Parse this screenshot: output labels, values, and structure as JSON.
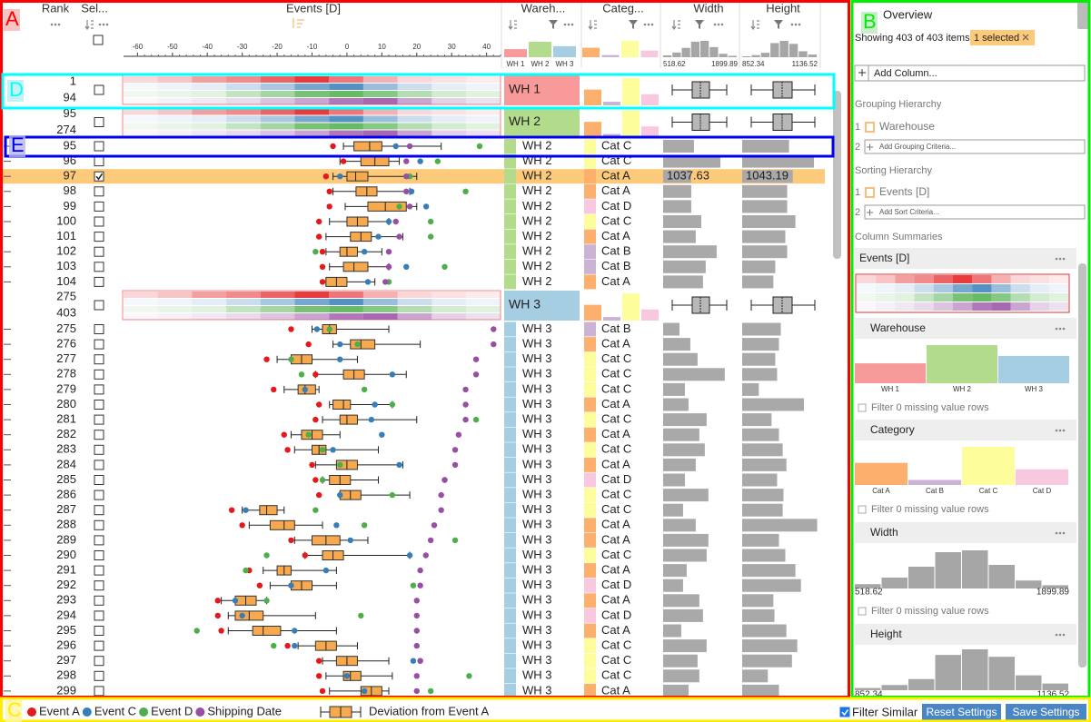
{
  "annotations": [
    "A",
    "B",
    "C",
    "D",
    "E"
  ],
  "header": {
    "rank": "Rank",
    "selection": "Sel...",
    "events": "Events [D]",
    "warehouse": "Wareh...",
    "category": "Categ...",
    "width": "Width",
    "height": "Height"
  },
  "events_axis": {
    "xlim": [
      -64,
      44
    ],
    "xticks": [
      -60,
      -50,
      -40,
      -30,
      -20,
      -10,
      0,
      10,
      20,
      30,
      40
    ]
  },
  "warehouses": [
    {
      "name": "WH 1",
      "count": 94,
      "color": "#f89a9a"
    },
    {
      "name": "WH 2",
      "count": 180,
      "color": "#b2dc8c"
    },
    {
      "name": "WH 3",
      "count": 129,
      "color": "#a6cee3"
    }
  ],
  "categories": [
    {
      "name": "Cat A",
      "count": 110,
      "color": "#fdb06d"
    },
    {
      "name": "Cat B",
      "count": 25,
      "color": "#cbb3d6"
    },
    {
      "name": "Cat C",
      "count": 190,
      "color": "#fdfd9c"
    },
    {
      "name": "Cat D",
      "count": 78,
      "color": "#f8c8e0"
    }
  ],
  "width_range": [
    518.62,
    1899.89
  ],
  "width_hist": [
    12,
    30,
    60,
    100,
    105,
    65,
    22,
    9
  ],
  "height_range": [
    852.34,
    1136.52
  ],
  "height_hist": [
    6,
    14,
    30,
    95,
    110,
    90,
    40,
    18
  ],
  "items": [
    {
      "warehouse": "WH 1",
      "ranks": [
        1,
        94
      ]
    },
    {
      "warehouse": "WH 2",
      "ranks": [
        95,
        274
      ]
    },
    {
      "rank": 95,
      "warehouse": "WH 2",
      "category": "Cat C",
      "selected": false,
      "events": [
        -4,
        14,
        38,
        18
      ],
      "box": [
        -1,
        2,
        6.5,
        10,
        27
      ],
      "width": 1090,
      "height": 1029
    },
    {
      "rank": 96,
      "warehouse": "WH 2",
      "category": "Cat C",
      "selected": false,
      "events": [
        -1,
        21,
        26,
        17
      ],
      "box": [
        -2,
        4,
        8,
        12,
        15
      ],
      "width": 1580,
      "height": 1123
    },
    {
      "rank": 97,
      "warehouse": "WH 2",
      "category": "Cat A",
      "selected": true,
      "events": [
        -6,
        -2,
        18,
        17
      ],
      "box": [
        -4,
        0,
        2.5,
        6,
        20
      ],
      "width": 1037.63,
      "height": 1043.19
    },
    {
      "rank": 98,
      "warehouse": "WH 2",
      "category": "Cat A",
      "selected": false,
      "events": [
        -5,
        18.5,
        34,
        17
      ],
      "box": [
        -4,
        2.6,
        5.7,
        8.6,
        18
      ],
      "width": 1040,
      "height": 1022
    },
    {
      "rank": 99,
      "warehouse": "WH 2",
      "category": "Cat D",
      "selected": false,
      "events": [
        -5,
        22.7,
        15,
        18
      ],
      "box": [
        -0.5,
        6,
        11,
        17,
        20
      ],
      "width": 1040,
      "height": 1022
    },
    {
      "rank": 100,
      "warehouse": "WH 2",
      "category": "Cat C",
      "selected": false,
      "events": [
        -8,
        12,
        24,
        14
      ],
      "box": [
        -5,
        0,
        3,
        6,
        12
      ],
      "width": 1226,
      "height": 1053
    },
    {
      "rank": 101,
      "warehouse": "WH 2",
      "category": "Cat A",
      "selected": false,
      "events": [
        -8,
        9,
        24,
        15
      ],
      "box": [
        -6,
        1,
        4,
        7,
        16
      ],
      "width": 1123,
      "height": 1015
    },
    {
      "rank": 102,
      "warehouse": "WH 2",
      "category": "Cat B",
      "selected": false,
      "events": [
        -7,
        5,
        -9,
        12
      ],
      "box": [
        -6,
        -2,
        0,
        3,
        10
      ],
      "width": 1511,
      "height": 1022
    },
    {
      "rank": 103,
      "warehouse": "WH 2",
      "category": "Cat B",
      "selected": false,
      "events": [
        -7,
        17,
        28,
        12
      ],
      "box": [
        -5,
        -1,
        2,
        6,
        12
      ],
      "width": 1308,
      "height": 977
    },
    {
      "rank": 104,
      "warehouse": "WH 2",
      "category": "Cat A",
      "selected": false,
      "events": [
        -7,
        6,
        12,
        11
      ],
      "box": [
        -6,
        -6,
        -3,
        0,
        8
      ],
      "width": 1258,
      "height": 970
    },
    {
      "warehouse": "WH 3",
      "ranks": [
        275,
        403
      ]
    },
    {
      "rank": 275,
      "warehouse": "WH 3",
      "category": "Cat B",
      "selected": false,
      "events": [
        -16,
        -8.6,
        -5,
        42
      ],
      "box": [
        -10,
        -7,
        -5,
        -3,
        12
      ],
      "width": 821,
      "height": 998
    },
    {
      "rank": 276,
      "warehouse": "WH 3",
      "category": "Cat A",
      "selected": false,
      "events": [
        -11,
        -2,
        3,
        42
      ],
      "box": [
        -4,
        1,
        4,
        8,
        21
      ],
      "width": 1023,
      "height": 991
    },
    {
      "rank": 277,
      "warehouse": "WH 3",
      "category": "Cat C",
      "selected": false,
      "events": [
        -23,
        -2,
        -16,
        37
      ],
      "box": [
        -20,
        -16,
        -13,
        -10,
        3
      ],
      "width": 1157,
      "height": 977
    },
    {
      "rank": 278,
      "warehouse": "WH 3",
      "category": "Cat C",
      "selected": false,
      "events": [
        -9,
        13,
        -13,
        37
      ],
      "box": [
        -9,
        -1,
        2,
        5,
        17
      ],
      "width": 1661,
      "height": 984
    },
    {
      "rank": 279,
      "warehouse": "WH 3",
      "category": "Cat C",
      "selected": false,
      "events": [
        -21,
        -12,
        5,
        34
      ],
      "box": [
        -18,
        -14,
        -12,
        -9,
        -8
      ],
      "width": 922,
      "height": 915
    },
    {
      "rank": 280,
      "warehouse": "WH 3",
      "category": "Cat A",
      "selected": false,
      "events": [
        -8,
        8,
        13,
        34
      ],
      "box": [
        -5,
        -4,
        -1,
        1,
        13
      ],
      "width": 989,
      "height": 1085
    },
    {
      "rank": 281,
      "warehouse": "WH 3",
      "category": "Cat C",
      "selected": false,
      "events": [
        -9,
        7,
        37,
        34
      ],
      "box": [
        -7,
        -2,
        0,
        3,
        20
      ],
      "width": 1325,
      "height": 963
    },
    {
      "rank": 282,
      "warehouse": "WH 3",
      "category": "Cat A",
      "selected": false,
      "events": [
        -18,
        10,
        -11,
        32
      ],
      "box": [
        -16,
        -13,
        -10,
        -7,
        -2
      ],
      "width": 1190,
      "height": 991
    },
    {
      "rank": 283,
      "warehouse": "WH 3",
      "category": "Cat C",
      "selected": false,
      "events": [
        -17,
        -4,
        -7,
        31
      ],
      "box": [
        -15,
        -10,
        -8,
        -6,
        9
      ],
      "width": 1291,
      "height": 1005
    },
    {
      "rank": 284,
      "warehouse": "WH 3",
      "category": "Cat A",
      "selected": false,
      "events": [
        -10,
        15,
        -2,
        31
      ],
      "box": [
        -9,
        -3,
        0,
        3,
        16
      ],
      "width": 1123,
      "height": 1019
    },
    {
      "rank": 285,
      "warehouse": "WH 3",
      "category": "Cat D",
      "selected": false,
      "events": [
        -9,
        28,
        -7,
        28
      ],
      "box": [
        -7,
        -5,
        -2,
        1,
        9
      ],
      "width": 922,
      "height": 984
    },
    {
      "rank": 286,
      "warehouse": "WH 3",
      "category": "Cat C",
      "selected": false,
      "events": [
        -8,
        -2,
        13,
        27
      ],
      "box": [
        -2,
        -2,
        1,
        4,
        18
      ],
      "width": 1358,
      "height": 1008
    },
    {
      "rank": 287,
      "warehouse": "WH 3",
      "category": "Cat C",
      "selected": false,
      "events": [
        -33,
        -29,
        -9,
        27
      ],
      "box": [
        -30,
        -25,
        -23,
        -20,
        -18
      ],
      "width": 888,
      "height": 1005
    },
    {
      "rank": 288,
      "warehouse": "WH 3",
      "category": "Cat A",
      "selected": false,
      "events": [
        -30,
        -3,
        5,
        25
      ],
      "box": [
        -28,
        -22,
        -18,
        -15,
        -7
      ],
      "width": 1123,
      "height": 1135
    },
    {
      "rank": 289,
      "warehouse": "WH 3",
      "category": "Cat A",
      "selected": false,
      "events": [
        -16,
        1,
        31,
        24
      ],
      "box": [
        -15,
        -10,
        -6,
        -2,
        6
      ],
      "width": 1358,
      "height": 991
    },
    {
      "rank": 290,
      "warehouse": "WH 3",
      "category": "Cat C",
      "selected": false,
      "events": [
        -12,
        18,
        -23,
        22.6
      ],
      "box": [
        -12,
        -7,
        -4,
        -1,
        18
      ],
      "width": 1325,
      "height": 1015
    },
    {
      "rank": 291,
      "warehouse": "WH 3",
      "category": "Cat A",
      "selected": false,
      "events": [
        -28,
        -6,
        -29,
        21
      ],
      "box": [
        -24,
        -20,
        -18,
        -16,
        -3
      ],
      "width": 955,
      "height": 1053
    },
    {
      "rank": 292,
      "warehouse": "WH 3",
      "category": "Cat D",
      "selected": false,
      "events": [
        -25,
        -16,
        19,
        21
      ],
      "box": [
        -22,
        -16,
        -13,
        -10,
        -3
      ],
      "width": 888,
      "height": 1074
    },
    {
      "rank": 293,
      "warehouse": "WH 3",
      "category": "Cat A",
      "selected": false,
      "events": [
        -37,
        -32,
        -23,
        20
      ],
      "box": [
        -36,
        -32,
        -29,
        -26,
        -23
      ],
      "width": 1190,
      "height": 970
    },
    {
      "rank": 294,
      "warehouse": "WH 3",
      "category": "Cat D",
      "selected": false,
      "events": [
        -37,
        -30,
        4,
        20
      ],
      "box": [
        -34,
        -32,
        -28,
        -24,
        -9
      ],
      "width": 1258,
      "height": 974
    },
    {
      "rank": 295,
      "warehouse": "WH 3",
      "category": "Cat A",
      "selected": false,
      "events": [
        -36,
        -15,
        -43,
        20
      ],
      "box": [
        -34,
        -27,
        -24,
        -19,
        -3
      ],
      "width": 855,
      "height": 1019
    },
    {
      "rank": 296,
      "warehouse": "WH 3",
      "category": "Cat C",
      "selected": false,
      "events": [
        -17,
        -15,
        -21,
        20
      ],
      "box": [
        -14,
        -9,
        -6,
        -3,
        3
      ],
      "width": 1325,
      "height": 1060
    },
    {
      "rank": 297,
      "warehouse": "WH 3",
      "category": "Cat C",
      "selected": false,
      "events": [
        -8,
        19,
        21,
        21
      ],
      "box": [
        -7,
        -3,
        0,
        3,
        12
      ],
      "width": 1157,
      "height": 1040
    },
    {
      "rank": 298,
      "warehouse": "WH 3",
      "category": "Cat C",
      "selected": false,
      "events": [
        -8,
        0,
        35,
        20
      ],
      "box": [
        -6,
        -1,
        1,
        4,
        13
      ],
      "width": 1190,
      "height": 949
    },
    {
      "rank": 299,
      "warehouse": "WH 3",
      "category": "Cat A",
      "selected": false,
      "events": [
        -7,
        5,
        24,
        20
      ],
      "box": [
        -5,
        4,
        7,
        10,
        12
      ],
      "width": 989,
      "height": 991
    }
  ],
  "legend": {
    "events": [
      {
        "name": "Event A",
        "color": "#e3191c"
      },
      {
        "name": "Event C",
        "color": "#377eb8"
      },
      {
        "name": "Event D",
        "color": "#4daf4a"
      },
      {
        "name": "Shipping Date",
        "color": "#984ea3"
      }
    ],
    "box": "Deviation from Event A",
    "box_color": "#f6a94e"
  },
  "footer": {
    "filter": "Filter Similar",
    "filter_checked": true,
    "buttons": [
      "Reset Settings",
      "Save Settings"
    ]
  },
  "panel": {
    "title": "Overview",
    "status": "Showing 403 of 403 items;",
    "selected": "1 selected",
    "add_column": "Add Column...",
    "grouping_title": "Grouping Hierarchy",
    "grouping": [
      {
        "index": 1,
        "label": "Warehouse"
      },
      {
        "index": 2,
        "label": "Add Grouping Criteria..."
      }
    ],
    "sorting_title": "Sorting Hierarchy",
    "sorting": [
      {
        "index": 1,
        "label": "Events [D]"
      },
      {
        "index": 2,
        "label": "Add Sort Criteria..."
      }
    ],
    "summaries_title": "Column Summaries",
    "summaries": [
      "Events [D]",
      "Warehouse",
      "Category",
      "Width",
      "Height"
    ],
    "filter": "Filter 0 missing value rows"
  }
}
